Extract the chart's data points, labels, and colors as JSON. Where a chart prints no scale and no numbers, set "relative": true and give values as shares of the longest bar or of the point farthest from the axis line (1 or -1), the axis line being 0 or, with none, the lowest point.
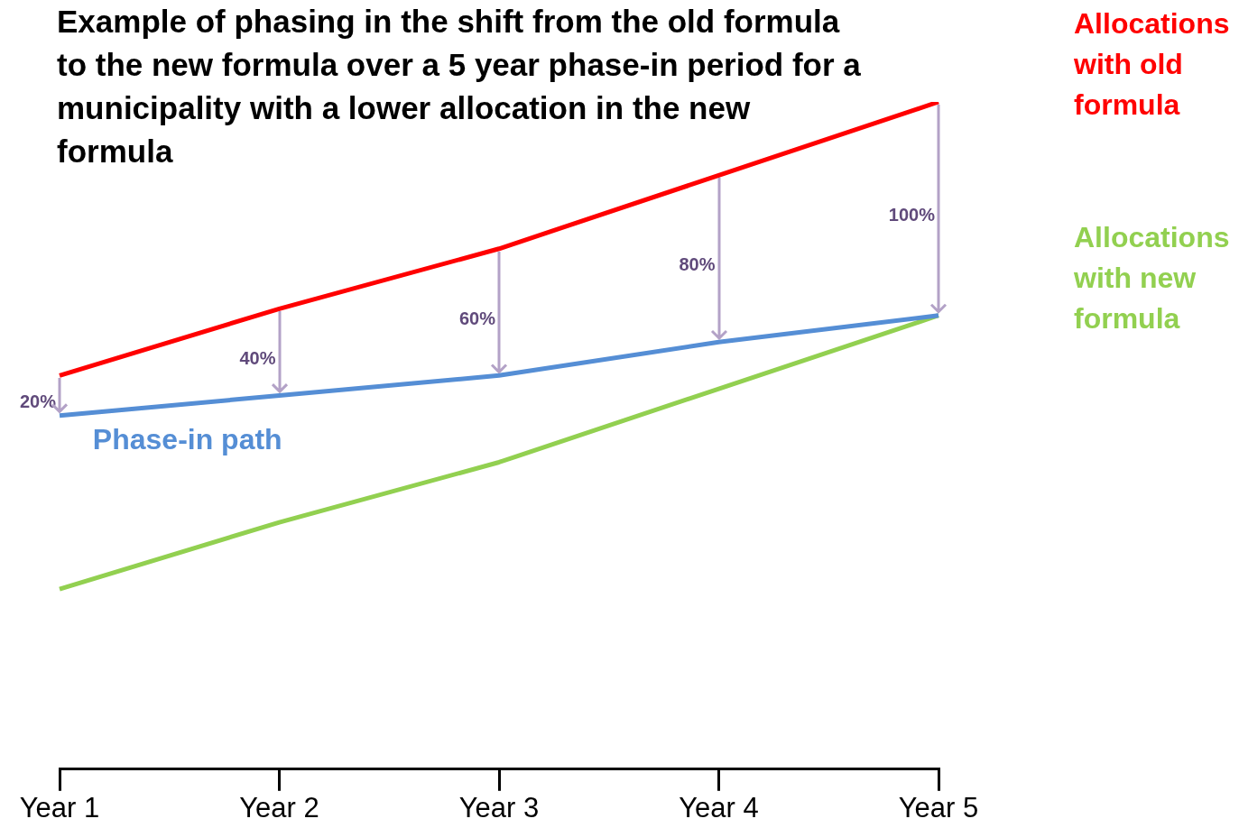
{
  "chart_data": {
    "type": "line",
    "relative": true,
    "title": "Example of phasing in the shift from the old formula to the new formula over a 5 year phase-in period for a municipality with a lower allocation in the new formula",
    "categories": [
      "Year 1",
      "Year 2",
      "Year 3",
      "Year 4",
      "Year 5"
    ],
    "series": [
      {
        "name": "Allocations with old formula",
        "color": "#ff0000",
        "values": [
          0.59,
          0.69,
          0.78,
          0.89,
          1
        ]
      },
      {
        "name": "Phase-in path",
        "color": "#558ed5",
        "values": [
          0.53,
          0.56,
          0.59,
          0.64,
          0.68
        ]
      },
      {
        "name": "Allocations with new formula",
        "color": "#92d050",
        "values": [
          0.27,
          0.37,
          0.46,
          0.57,
          0.68
        ]
      }
    ],
    "annotations": [
      "20%",
      "40%",
      "60%",
      "80%",
      "100%"
    ],
    "legend": false,
    "grid": false,
    "marker": "none",
    "line_style": "solid"
  }
}
